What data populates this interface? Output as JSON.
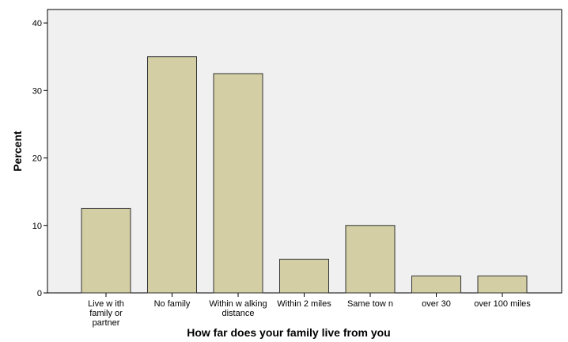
{
  "chart_data": {
    "type": "bar",
    "title": "",
    "xlabel": "How far does your family live from you",
    "ylabel": "Percent",
    "categories": [
      [
        "Live w ith",
        "family or",
        "partner"
      ],
      [
        "No family"
      ],
      [
        "Within w alking",
        "distance"
      ],
      [
        "Within 2 miles"
      ],
      [
        "Same tow n"
      ],
      [
        "over 30"
      ],
      [
        "over 100 miles"
      ]
    ],
    "values": [
      12.5,
      35.0,
      32.5,
      5.0,
      10.0,
      2.5,
      2.5
    ],
    "ylim": [
      0,
      42
    ],
    "yticks": [
      0,
      10,
      20,
      30,
      40
    ],
    "grid": false,
    "colors": {
      "bar_fill": "#d3cea3",
      "bar_stroke": "#333333",
      "plot_background": "#f0f0f0",
      "axis": "#000000"
    }
  }
}
